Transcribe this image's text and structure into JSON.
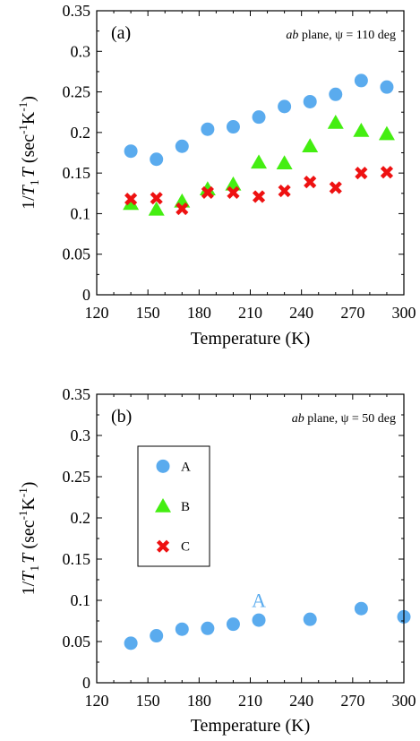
{
  "chart_data": [
    {
      "type": "scatter",
      "panel_label": "(a)",
      "annotation": {
        "italic_part": "ab",
        "rest": " plane, ψ = 110 deg"
      },
      "xlabel": "Temperature (K)",
      "ylabel": {
        "pre": "1/",
        "T": "T",
        "sub": "1",
        "mid": "T",
        "unit": " (sec",
        "sup1": "-1",
        "unit2": "K",
        "sup2": "-1",
        "close": ")"
      },
      "xlim": [
        120,
        300
      ],
      "ylim": [
        0,
        0.35
      ],
      "xticks": [
        "120",
        "150",
        "180",
        "210",
        "240",
        "270",
        "300"
      ],
      "yticks": [
        "0",
        "0.05",
        "0.1",
        "0.15",
        "0.2",
        "0.25",
        "0.3",
        "0.35"
      ],
      "series": [
        {
          "name": "A",
          "marker": "circle",
          "color": "#5aabee",
          "x": [
            140,
            155,
            170,
            185,
            200,
            215,
            230,
            245,
            260,
            275,
            290
          ],
          "y": [
            0.177,
            0.167,
            0.183,
            0.204,
            0.207,
            0.219,
            0.232,
            0.238,
            0.247,
            0.264,
            0.256
          ]
        },
        {
          "name": "B",
          "marker": "triangle",
          "color": "#44ee11",
          "x": [
            140,
            155,
            170,
            185,
            200,
            215,
            230,
            245,
            260,
            275,
            290
          ],
          "y": [
            0.112,
            0.105,
            0.115,
            0.13,
            0.136,
            0.163,
            0.162,
            0.183,
            0.212,
            0.202,
            0.198
          ]
        },
        {
          "name": "C",
          "marker": "cross",
          "color": "#ee1111",
          "x": [
            140,
            155,
            170,
            185,
            200,
            215,
            230,
            245,
            260,
            275,
            290
          ],
          "y": [
            0.118,
            0.119,
            0.106,
            0.126,
            0.126,
            0.121,
            0.128,
            0.139,
            0.132,
            0.15,
            0.151
          ]
        }
      ]
    },
    {
      "type": "scatter",
      "panel_label": "(b)",
      "annotation": {
        "italic_part": "ab",
        "rest": " plane, ψ = 50 deg"
      },
      "xlabel": "Temperature (K)",
      "ylabel": {
        "pre": "1/",
        "T": "T",
        "sub": "1",
        "mid": "T",
        "unit": " (sec",
        "sup1": "-1",
        "unit2": "K",
        "sup2": "-1",
        "close": ")"
      },
      "xlim": [
        120,
        300
      ],
      "ylim": [
        0,
        0.35
      ],
      "xticks": [
        "120",
        "150",
        "180",
        "210",
        "240",
        "270",
        "300"
      ],
      "yticks": [
        "0",
        "0.05",
        "0.1",
        "0.15",
        "0.2",
        "0.25",
        "0.3",
        "0.35"
      ],
      "inline_label": {
        "text": "A",
        "color": "#5aabee",
        "x": 215,
        "y": 0.092
      },
      "legend": {
        "placement": "upper-left",
        "entries": [
          {
            "name": "A",
            "marker": "circle",
            "color": "#5aabee"
          },
          {
            "name": "B",
            "marker": "triangle",
            "color": "#44ee11"
          },
          {
            "name": "C",
            "marker": "cross",
            "color": "#ee1111"
          }
        ]
      },
      "series": [
        {
          "name": "A",
          "marker": "circle",
          "color": "#5aabee",
          "x": [
            140,
            155,
            170,
            185,
            200,
            215,
            245,
            275,
            300
          ],
          "y": [
            0.048,
            0.057,
            0.065,
            0.066,
            0.071,
            0.076,
            0.077,
            0.09,
            0.08
          ]
        }
      ]
    }
  ]
}
